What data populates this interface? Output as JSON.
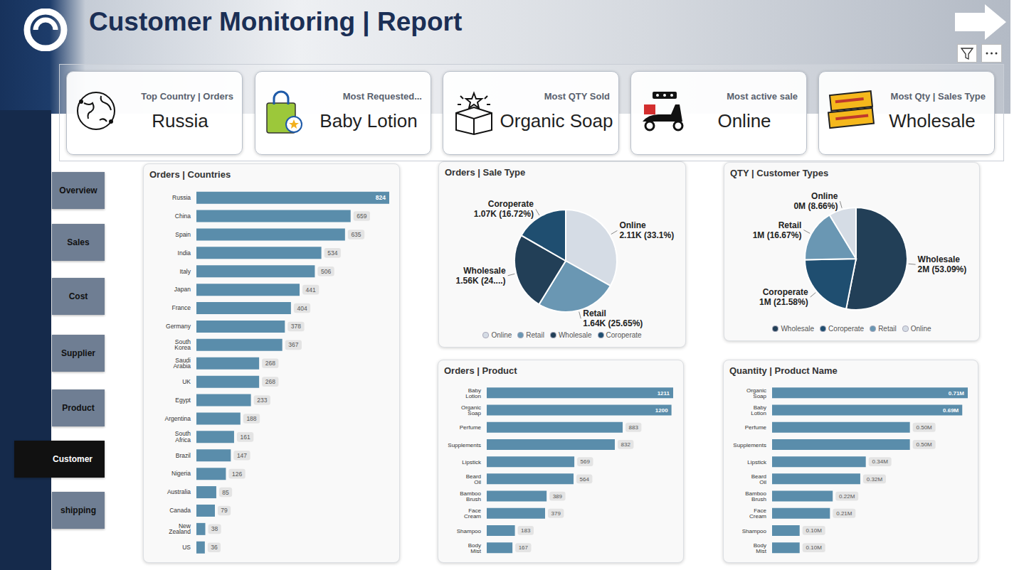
{
  "header": {
    "title": "Customer Monitoring | Report"
  },
  "cards": [
    {
      "label": "Top Country | Orders",
      "value": "Russia"
    },
    {
      "label": "Most Requested...",
      "value": "Baby Lotion"
    },
    {
      "label": "Most QTY Sold",
      "value": "Organic Soap"
    },
    {
      "label": "Most active sale",
      "value": "Online"
    },
    {
      "label": "Most Qty | Sales Type",
      "value": "Wholesale"
    }
  ],
  "nav": {
    "items": [
      "Overview",
      "Sales",
      "Cost",
      "Supplier",
      "Product",
      "Customer",
      "shipping"
    ],
    "active": "Customer"
  },
  "chart_data": [
    {
      "type": "bar",
      "title": "Orders | Countries",
      "orientation": "horizontal",
      "categories": [
        "Russia",
        "China",
        "Spain",
        "India",
        "Italy",
        "Japan",
        "France",
        "Germany",
        "South Korea",
        "Saudi Arabia",
        "UK",
        "Egypt",
        "Argentina",
        "South Africa",
        "Brazil",
        "Nigeria",
        "Australia",
        "Canada",
        "New Zealand",
        "US"
      ],
      "values": [
        824,
        659,
        635,
        534,
        506,
        441,
        404,
        378,
        367,
        268,
        268,
        233,
        188,
        161,
        147,
        126,
        85,
        79,
        38,
        36
      ],
      "color": "#5a8dab",
      "xlim": [
        0,
        824
      ],
      "data_labels": true,
      "tick_labels": "y"
    },
    {
      "type": "pie",
      "title": "Orders | Sale Type",
      "categories": [
        "Online",
        "Retail",
        "Wholesale",
        "Coroperate"
      ],
      "values": [
        33.1,
        25.65,
        24.53,
        16.72
      ],
      "value_labels": [
        "2.11K (33.1%)",
        "1.64K (25.65%)",
        "1.56K (24....)",
        "1.07K (16.72%)"
      ],
      "colors": [
        "#d5dce5",
        "#6a97b3",
        "#223f57",
        "#1f4e70"
      ],
      "data_labels": true,
      "legend": "bottom"
    },
    {
      "type": "pie",
      "title": "QTY | Customer Types",
      "categories": [
        "Wholesale",
        "Coroperate",
        "Retail",
        "Online"
      ],
      "values": [
        53.09,
        21.58,
        16.67,
        8.66
      ],
      "value_labels": [
        "2M (53.09%)",
        "1M (21.58%)",
        "1M (16.67%)",
        "0M (8.66%)"
      ],
      "colors": [
        "#223f57",
        "#1f4e70",
        "#6a97b3",
        "#d5dce5"
      ],
      "data_labels": true,
      "legend": "bottom"
    },
    {
      "type": "bar",
      "title": "Orders | Product",
      "orientation": "horizontal",
      "categories": [
        "Baby Lotion",
        "Organic Soap",
        "Perfume",
        "Supplements",
        "Lipstick",
        "Beard Oil",
        "Bamboo Brush",
        "Face Cream",
        "Shampoo",
        "Body Mist"
      ],
      "values": [
        1211,
        1200,
        883,
        832,
        569,
        564,
        389,
        379,
        183,
        167
      ],
      "color": "#5a8dab",
      "xlim": [
        0,
        1211
      ],
      "data_labels": true,
      "tick_labels": "y"
    },
    {
      "type": "bar",
      "title": "Quantity | Product Name",
      "orientation": "horizontal",
      "categories": [
        "Organic Soap",
        "Baby Lotion",
        "Perfume",
        "Supplements",
        "Lipstick",
        "Beard Oil",
        "Bamboo Brush",
        "Face Cream",
        "Shampoo",
        "Body Mist"
      ],
      "values": [
        0.71,
        0.69,
        0.5,
        0.5,
        0.34,
        0.32,
        0.22,
        0.21,
        0.1,
        0.1
      ],
      "value_labels": [
        "0.71M",
        "0.69M",
        "0.50M",
        "0.50M",
        "0.34M",
        "0.32M",
        "0.22M",
        "0.21M",
        "0.10M",
        "0.10M"
      ],
      "color": "#5a8dab",
      "xlim": [
        0,
        0.71
      ],
      "data_labels": true,
      "tick_labels": "y"
    }
  ]
}
